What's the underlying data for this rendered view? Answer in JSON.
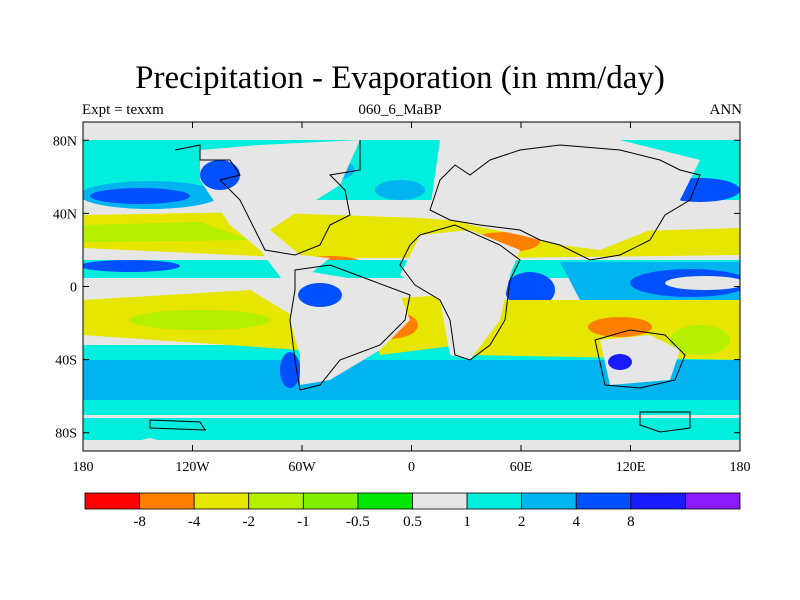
{
  "title": "Precipitation - Evaporation (in mm/day)",
  "left_label": "Expt = texxm",
  "center_label": "060_6_MaBP",
  "right_label": "ANN",
  "map": {
    "lon_ticks": [
      "180",
      "120W",
      "60W",
      "0",
      "60E",
      "120E",
      "180"
    ],
    "lat_ticks": [
      "80N",
      "40N",
      "0",
      "40S",
      "80S"
    ],
    "lon_range": [
      -180,
      180
    ],
    "lat_range": [
      -90,
      90
    ],
    "lon_tick_values": [
      -180,
      -120,
      -60,
      0,
      60,
      120,
      180
    ],
    "lat_tick_values": [
      80,
      40,
      0,
      -40,
      -80
    ]
  },
  "colorbar": {
    "bins": [
      {
        "color": "#ff0000"
      },
      {
        "color": "#ff8000"
      },
      {
        "color": "#e6e600"
      },
      {
        "color": "#b4f000"
      },
      {
        "color": "#80f000"
      },
      {
        "color": "#00e600"
      },
      {
        "color": "#e6e6e6"
      },
      {
        "color": "#00eedd"
      },
      {
        "color": "#00b4f0"
      },
      {
        "color": "#0050ff"
      },
      {
        "color": "#1a1aff"
      },
      {
        "color": "#8a1aff"
      }
    ],
    "labels": [
      "-8",
      "-4",
      "-2",
      "-1",
      "-0.5",
      "0.5",
      "1",
      "2",
      "4",
      "8"
    ]
  }
}
